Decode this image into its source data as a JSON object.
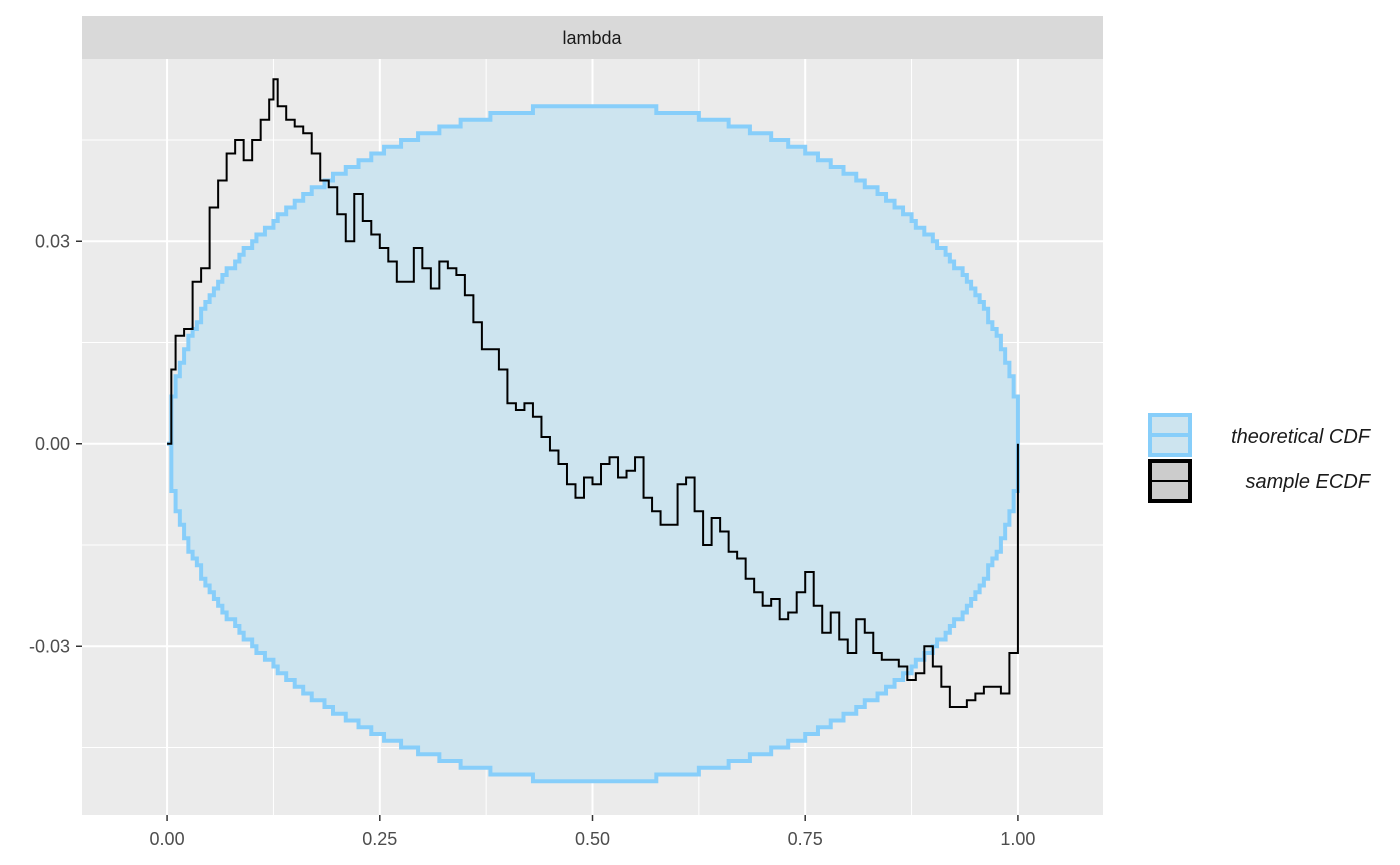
{
  "chart_data": {
    "type": "line",
    "facet_label": "lambda",
    "xlabel": "",
    "ylabel": "",
    "xlim": [
      -0.1,
      1.1
    ],
    "ylim": [
      -0.055,
      0.057
    ],
    "x_ticks": [
      0.0,
      0.25,
      0.5,
      0.75,
      1.0
    ],
    "x_tick_labels": [
      "0.00",
      "0.25",
      "0.50",
      "0.75",
      "1.00"
    ],
    "y_ticks": [
      -0.03,
      0.0,
      0.03
    ],
    "y_tick_labels": [
      "-0.03",
      "0.00",
      "0.03"
    ],
    "grid": true,
    "legend_position": "right",
    "series": [
      {
        "name": "theoretical CDF",
        "kind": "band",
        "color": "#87CEFA",
        "fill": "#cde4ef",
        "upper_peak": 0.05,
        "lower_trough": -0.05,
        "shape": "ellipse"
      },
      {
        "name": "sample ECDF",
        "kind": "step",
        "color": "#000000",
        "x": [
          0.0,
          0.005,
          0.01,
          0.02,
          0.03,
          0.04,
          0.05,
          0.06,
          0.07,
          0.08,
          0.09,
          0.1,
          0.11,
          0.12,
          0.125,
          0.13,
          0.14,
          0.15,
          0.16,
          0.17,
          0.18,
          0.19,
          0.2,
          0.21,
          0.22,
          0.23,
          0.24,
          0.25,
          0.26,
          0.27,
          0.28,
          0.29,
          0.3,
          0.31,
          0.32,
          0.33,
          0.34,
          0.35,
          0.36,
          0.37,
          0.38,
          0.39,
          0.4,
          0.41,
          0.42,
          0.43,
          0.44,
          0.45,
          0.46,
          0.47,
          0.48,
          0.49,
          0.5,
          0.51,
          0.52,
          0.53,
          0.54,
          0.55,
          0.56,
          0.57,
          0.58,
          0.59,
          0.6,
          0.61,
          0.62,
          0.63,
          0.64,
          0.65,
          0.66,
          0.67,
          0.68,
          0.69,
          0.7,
          0.71,
          0.72,
          0.73,
          0.74,
          0.75,
          0.76,
          0.77,
          0.78,
          0.79,
          0.8,
          0.81,
          0.82,
          0.83,
          0.84,
          0.85,
          0.86,
          0.87,
          0.88,
          0.89,
          0.9,
          0.91,
          0.92,
          0.93,
          0.94,
          0.95,
          0.96,
          0.97,
          0.98,
          0.99,
          1.0
        ],
        "values": [
          0.0,
          0.011,
          0.016,
          0.017,
          0.024,
          0.026,
          0.035,
          0.039,
          0.043,
          0.045,
          0.042,
          0.045,
          0.048,
          0.051,
          0.054,
          0.05,
          0.048,
          0.047,
          0.046,
          0.043,
          0.039,
          0.038,
          0.034,
          0.03,
          0.037,
          0.033,
          0.031,
          0.029,
          0.027,
          0.024,
          0.024,
          0.029,
          0.026,
          0.023,
          0.027,
          0.026,
          0.025,
          0.022,
          0.018,
          0.014,
          0.014,
          0.011,
          0.006,
          0.005,
          0.006,
          0.004,
          0.001,
          -0.001,
          -0.003,
          -0.006,
          -0.008,
          -0.005,
          -0.006,
          -0.003,
          -0.002,
          -0.005,
          -0.004,
          -0.002,
          -0.008,
          -0.01,
          -0.012,
          -0.012,
          -0.006,
          -0.005,
          -0.01,
          -0.015,
          -0.011,
          -0.013,
          -0.016,
          -0.017,
          -0.02,
          -0.022,
          -0.024,
          -0.023,
          -0.026,
          -0.025,
          -0.022,
          -0.019,
          -0.024,
          -0.028,
          -0.025,
          -0.029,
          -0.031,
          -0.026,
          -0.028,
          -0.031,
          -0.032,
          -0.032,
          -0.033,
          -0.035,
          -0.034,
          -0.03,
          -0.033,
          -0.036,
          -0.039,
          -0.039,
          -0.038,
          -0.037,
          -0.036,
          -0.036,
          -0.037,
          -0.031,
          0.0
        ]
      }
    ]
  }
}
